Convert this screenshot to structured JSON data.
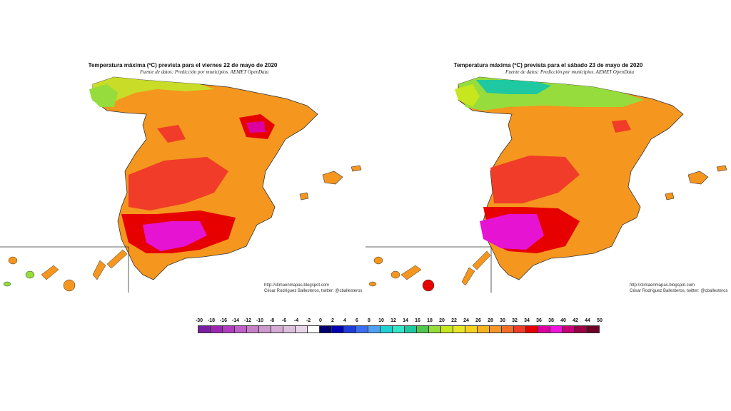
{
  "maps": [
    {
      "title": "Temperatura máxima (ºC) prevista para el viernes 22 de mayo de 2020",
      "source": "Fuente de datos: Predicción por municipios. AEMET OpenData",
      "credit_url": "http://climaenmapas.blogspot.com",
      "credit_author": "César Rodríguez Ballesteros, twitter: @cballesteros"
    },
    {
      "title": "Temperatura máxima (ºC) prevista para el sábado 23 de mayo de 2020",
      "source": "Fuente de datos: Predicción por municipios. AEMET OpenData",
      "credit_url": "http://climaenmapas.blogspot.com",
      "credit_author": "César Rodríguez Ballesteros, twitter: @cballesteros"
    }
  ],
  "legend": {
    "labels": [
      "-30",
      "-18",
      "-16",
      "-14",
      "-12",
      "-10",
      "-8",
      "-6",
      "-4",
      "-2",
      "0",
      "2",
      "4",
      "6",
      "8",
      "10",
      "12",
      "14",
      "16",
      "18",
      "20",
      "22",
      "24",
      "26",
      "28",
      "30",
      "32",
      "34",
      "36",
      "38",
      "40",
      "42",
      "44",
      "50"
    ],
    "colors": [
      "#7b1fa2",
      "#9c27b0",
      "#b03cc0",
      "#c060c8",
      "#c77fc8",
      "#cc99cc",
      "#d4aad4",
      "#dcc0dc",
      "#e8d6e8",
      "#ffffff",
      "#00006e",
      "#0000b4",
      "#1e3cdc",
      "#3c6ef0",
      "#50a0f5",
      "#1ed2d2",
      "#32e6c8",
      "#1ec8a0",
      "#50c850",
      "#96dc3c",
      "#c8e61e",
      "#e6e628",
      "#f5d21e",
      "#f5b41e",
      "#f59628",
      "#f56e28",
      "#f03c28",
      "#e60000",
      "#dc00a0",
      "#f014dc",
      "#c80078",
      "#9b0046",
      "#6e0028"
    ]
  }
}
